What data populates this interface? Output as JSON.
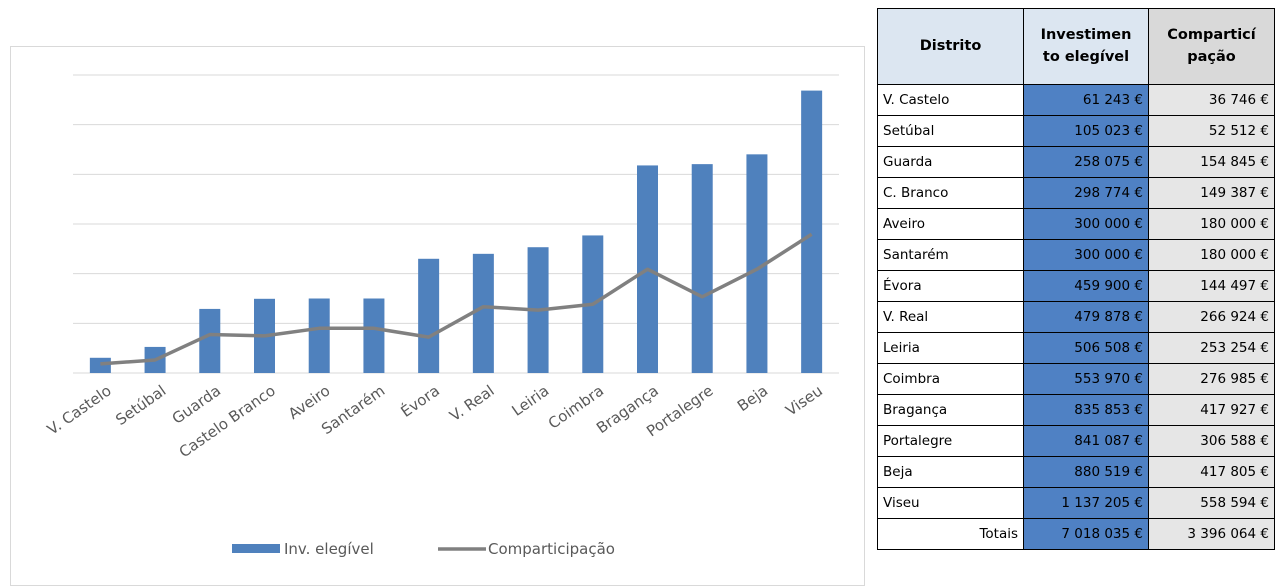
{
  "chart_data": {
    "type": "bar",
    "categories": [
      "V. Castelo",
      "Setúbal",
      "Guarda",
      "Castelo Branco",
      "Aveiro",
      "Santarém",
      "Évora",
      "V. Real",
      "Leiria",
      "Coimbra",
      "Bragança",
      "Portalegre",
      "Beja",
      "Viseu"
    ],
    "series": [
      {
        "name": "Inv. elegível",
        "type": "bar",
        "color": "#4f81bd",
        "values": [
          61243,
          105023,
          258075,
          298774,
          300000,
          300000,
          459900,
          479878,
          506508,
          553970,
          835853,
          841087,
          880519,
          1137205
        ]
      },
      {
        "name": "Comparticipação",
        "type": "line",
        "color": "#808080",
        "values": [
          36746,
          52512,
          154845,
          149387,
          180000,
          180000,
          144497,
          266924,
          253254,
          276985,
          417927,
          306588,
          417805,
          558594
        ]
      }
    ],
    "ylim": [
      0,
      1200000
    ],
    "grid": true,
    "legend": "bottom",
    "title": "",
    "xlabel": "",
    "ylabel": ""
  },
  "table": {
    "headers": {
      "district": "Distrito",
      "investment_line1": "Investimen",
      "investment_line2": "to elegível",
      "share_line1": "Comparticí",
      "share_line2": "pação"
    },
    "rows": [
      {
        "name": "V. Castelo",
        "investment": "61 243 €",
        "share": "36 746 €"
      },
      {
        "name": "Setúbal",
        "investment": "105 023 €",
        "share": "52 512 €"
      },
      {
        "name": "Guarda",
        "investment": "258 075 €",
        "share": "154 845 €"
      },
      {
        "name": "C. Branco",
        "investment": "298 774 €",
        "share": "149 387 €"
      },
      {
        "name": "Aveiro",
        "investment": "300 000 €",
        "share": "180 000 €"
      },
      {
        "name": "Santarém",
        "investment": "300 000 €",
        "share": "180 000 €"
      },
      {
        "name": "Évora",
        "investment": "459 900 €",
        "share": "144 497 €"
      },
      {
        "name": "V. Real",
        "investment": "479 878 €",
        "share": "266 924 €"
      },
      {
        "name": "Leiria",
        "investment": "506 508 €",
        "share": "253 254 €"
      },
      {
        "name": "Coimbra",
        "investment": "553 970 €",
        "share": "276 985 €"
      },
      {
        "name": "Bragança",
        "investment": "835 853 €",
        "share": "417 927 €"
      },
      {
        "name": "Portalegre",
        "investment": "841 087 €",
        "share": "306 588 €"
      },
      {
        "name": "Beja",
        "investment": "880 519 €",
        "share": "417 805 €"
      },
      {
        "name": "Viseu",
        "investment": "1 137 205 €",
        "share": "558 594 €"
      }
    ],
    "totals": {
      "label": "Totais",
      "investment": "7 018 035 €",
      "share": "3 396 064 €"
    },
    "colors": {
      "header_blue": "#dce6f1",
      "header_grey": "#d9d9d9",
      "investment_fill": "#4f81c4",
      "share_fill": "#e6e6e6"
    }
  }
}
